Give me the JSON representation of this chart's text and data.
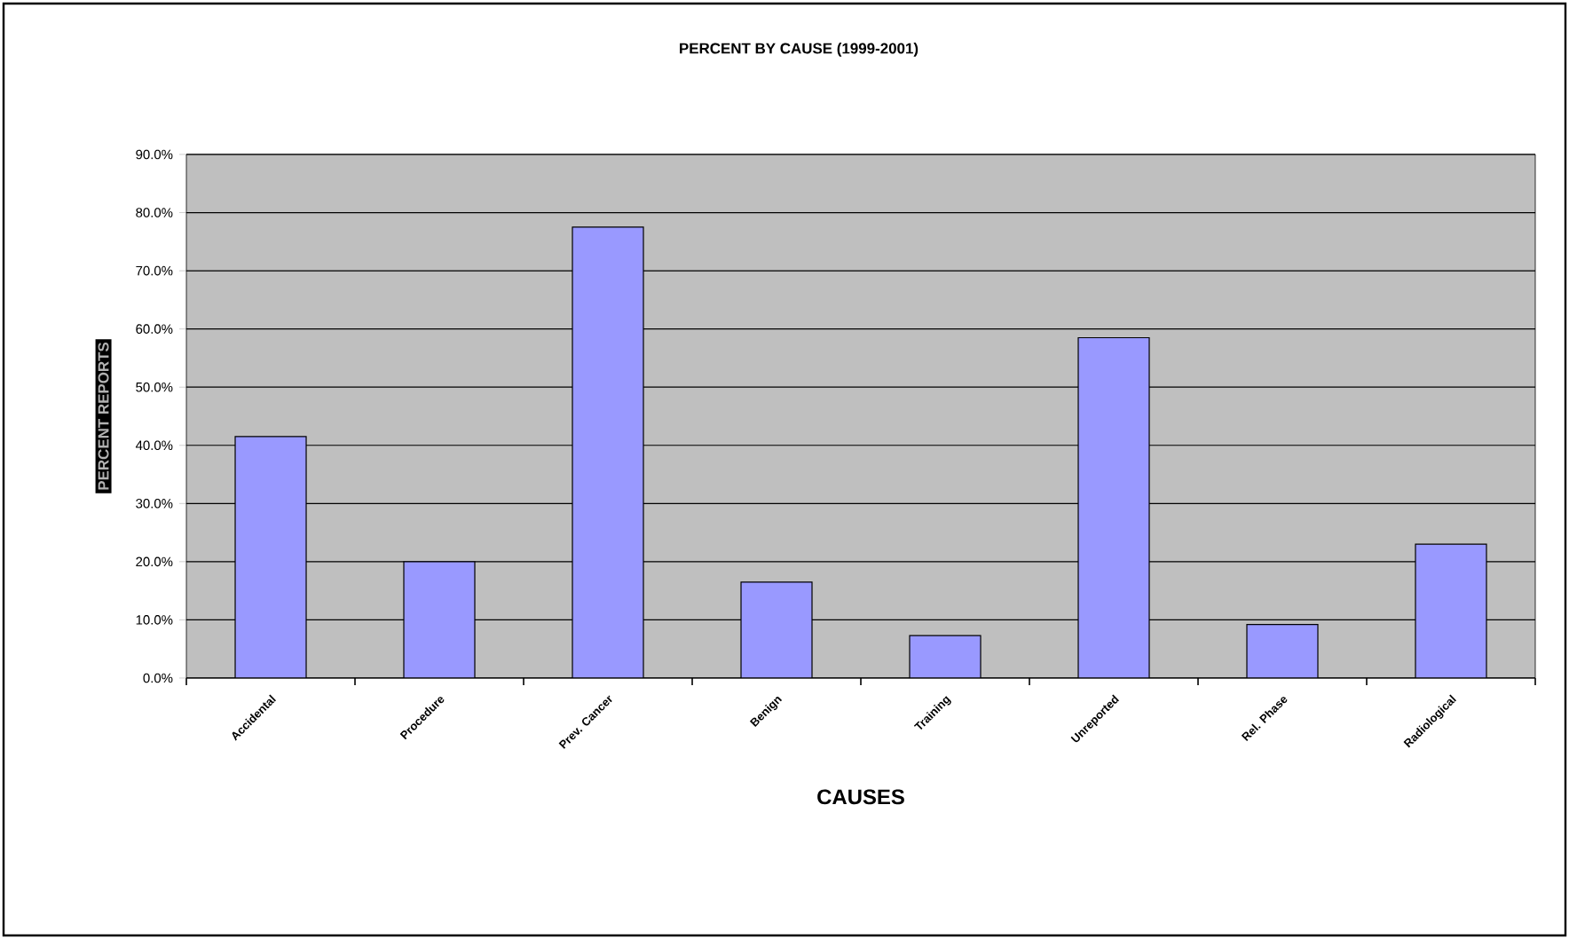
{
  "chart_data": {
    "type": "bar",
    "title": "PERCENT BY CAUSE (1999-2001)",
    "xlabel": "CAUSES",
    "ylabel": "PERCENT REPORTS",
    "categories": [
      "Accidental",
      "Procedure",
      "Prev. Cancer",
      "Benign",
      "Training",
      "Unreported",
      "Rel. Phase",
      "Radiological"
    ],
    "values": [
      41.5,
      20.0,
      77.5,
      16.5,
      7.3,
      58.5,
      9.2,
      23.0
    ],
    "color": "#9999ff",
    "ylim": [
      0,
      90
    ],
    "yticks": [
      {
        "value": 0,
        "label": "0.0%"
      },
      {
        "value": 10,
        "label": "10.0%"
      },
      {
        "value": 20,
        "label": "20.0%"
      },
      {
        "value": 30,
        "label": "30.0%"
      },
      {
        "value": 40,
        "label": "40.0%"
      },
      {
        "value": 50,
        "label": "50.0%"
      },
      {
        "value": 60,
        "label": "60.0%"
      },
      {
        "value": 70,
        "label": "70.0%"
      },
      {
        "value": 80,
        "label": "80.0%"
      },
      {
        "value": 90,
        "label": "90.0%"
      }
    ],
    "grid": "y"
  }
}
